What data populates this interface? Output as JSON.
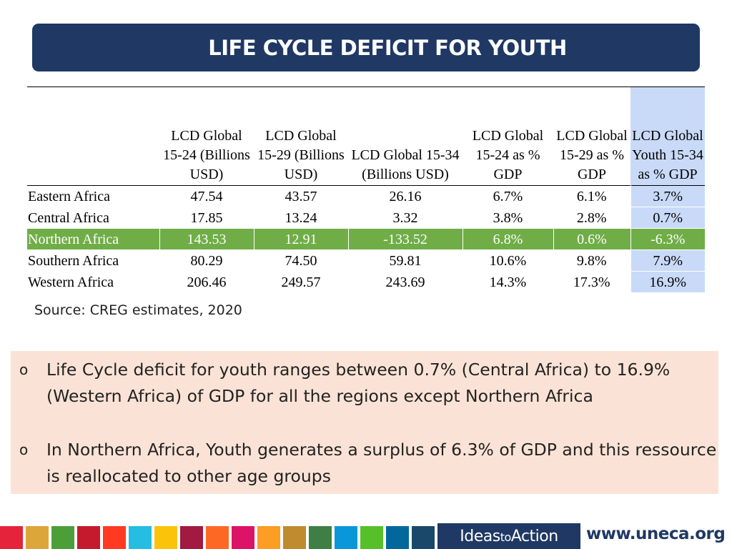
{
  "title": "LIFE CYCLE DEFICIT FOR YOUTH",
  "table": {
    "headers": [
      "",
      "LCD Global 15-24 (Billions USD)",
      "LCD Global 15-29 (Billions USD)",
      "LCD Global 15-34 (Billions USD)",
      "LCD Global 15-24 as % GDP",
      "LCD Global 15-29 as % GDP",
      "LCD Global Youth 15-34 as % GDP"
    ],
    "rows": [
      {
        "region": "Eastern Africa",
        "values": [
          "47.54",
          "43.57",
          "26.16",
          "6.7%",
          "6.1%",
          "3.7%"
        ]
      },
      {
        "region": "Central Africa",
        "values": [
          "17.85",
          "13.24",
          "3.32",
          "3.8%",
          "2.8%",
          "0.7%"
        ]
      },
      {
        "region": "Northern Africa",
        "values": [
          "143.53",
          "12.91",
          "-133.52",
          "6.8%",
          "0.6%",
          "-6.3%"
        ]
      },
      {
        "region": "Southern Africa",
        "values": [
          "80.29",
          "74.50",
          "59.81",
          "10.6%",
          "9.8%",
          "7.9%"
        ]
      },
      {
        "region": "Western Africa",
        "values": [
          "206.46",
          "249.57",
          "243.69",
          "14.3%",
          "17.3%",
          "16.9%"
        ]
      }
    ]
  },
  "source": "Source: CREG estimates, 2020",
  "notes": [
    "Life Cycle deficit for youth ranges between 0.7% (Central Africa) to 16.9% (Western Africa) of GDP for all the regions except Northern Africa",
    "In Northern Africa, Youth generates a surplus of 6.3% of GDP and this ressource is reallocated to other age groups"
  ],
  "bullet": "o",
  "footer": {
    "logo_left": "Ideas",
    "logo_mid": "to",
    "logo_right": "Action",
    "url": "www.uneca.org"
  },
  "sdg_colors": [
    "#e5243b",
    "#dda63a",
    "#4c9f38",
    "#c5192d",
    "#ff3a21",
    "#26bde2",
    "#fcc30b",
    "#a21942",
    "#fd6925",
    "#dd1367",
    "#fd9d24",
    "#bf8b2e",
    "#3f7e44",
    "#0a97d9",
    "#56c02b",
    "#00689d",
    "#19486a"
  ]
}
